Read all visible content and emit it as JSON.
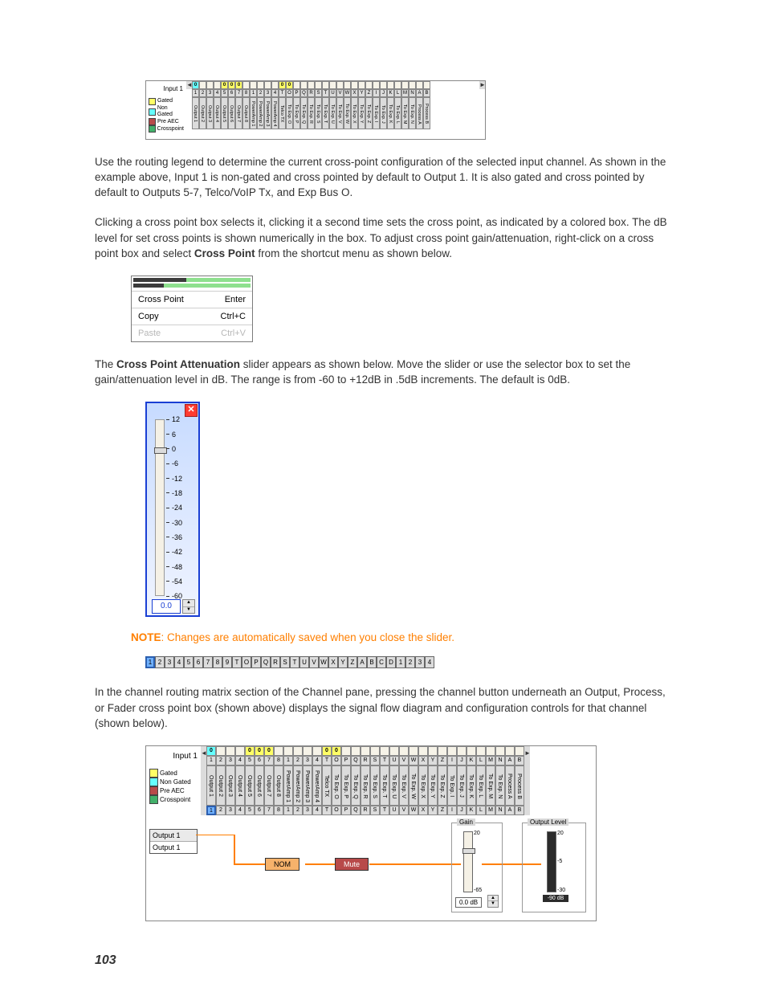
{
  "colors": {
    "gated": "#ffff66",
    "nonGated": "#66ffff",
    "preAEC": "#b84a4a",
    "crosspoint": "#42b06a",
    "note": "#ff7f00",
    "sliderBorder": "#1a3fd4",
    "wire": "#ff7f00"
  },
  "para1": "Use the routing legend to determine the current cross-point configuration of the selected input channel. As shown in the example above, Input 1 is non-gated and cross pointed by default to Output 1. It is also gated and cross pointed by default to Outputs 5-7, Telco/VoIP Tx, and Exp Bus O.",
  "para2_a": "Clicking a cross point box selects it, clicking it a second time sets the cross point, as indicated by a colored box. The dB level for set cross points is shown numerically in the box. To adjust cross point gain/attenuation, right-click on a cross point box and select ",
  "para2_b": "Cross Point",
  "para2_c": " from the shortcut menu as shown below.",
  "para3_a": "The ",
  "para3_b": "Cross Point Attenuation",
  "para3_c": " slider appears as shown below. Move the slider or use the selector box to set the gain/attenuation level in dB. The range is from -60 to +12dB in .5dB increments. The default is 0dB.",
  "note_label": "NOTE",
  "note_text": ": Changes are automatically saved when you close the slider.",
  "para4": "In the channel routing matrix section of the Channel pane, pressing the channel button underneath an Output, Process, or Fader cross point box (shown above) displays the signal flow diagram and configuration controls for that channel (shown below).",
  "pageNumber": "103",
  "matrix": {
    "inputLabel": "Input 1",
    "legend": [
      {
        "label": "Gated",
        "color": "#ffff66"
      },
      {
        "label": "Non Gated",
        "color": "#66ffff"
      },
      {
        "label": "Pre AEC",
        "color": "#b84a4a"
      },
      {
        "label": "Crosspoint",
        "color": "#42b06a"
      }
    ],
    "headers": [
      "1",
      "2",
      "3",
      "4",
      "5",
      "6",
      "7",
      "8",
      "1",
      "2",
      "3",
      "4",
      "T",
      "O",
      "P",
      "Q",
      "R",
      "S",
      "T",
      "U",
      "V",
      "W",
      "X",
      "Y",
      "Z",
      "I",
      "J",
      "K",
      "L",
      "M",
      "N",
      "A",
      "B"
    ],
    "buttons": [
      "1",
      "2",
      "3",
      "4",
      "5",
      "6",
      "7",
      "8",
      "1",
      "2",
      "3",
      "4",
      "T",
      "O",
      "P",
      "Q",
      "R",
      "S",
      "T",
      "U",
      "V",
      "W",
      "X",
      "Y",
      "Z",
      "I",
      "J",
      "K",
      "L",
      "M",
      "N",
      "A",
      "B"
    ],
    "cells": [
      {
        "state": "nongated",
        "val": "0"
      },
      {
        "state": ""
      },
      {
        "state": ""
      },
      {
        "state": ""
      },
      {
        "state": "gated",
        "val": "0"
      },
      {
        "state": "gated",
        "val": "0"
      },
      {
        "state": "gated",
        "val": "0"
      },
      {
        "state": ""
      },
      {
        "state": ""
      },
      {
        "state": ""
      },
      {
        "state": ""
      },
      {
        "state": ""
      },
      {
        "state": "gated",
        "val": "0"
      },
      {
        "state": "gated",
        "val": "0"
      },
      {
        "state": ""
      },
      {
        "state": ""
      },
      {
        "state": ""
      },
      {
        "state": ""
      },
      {
        "state": ""
      },
      {
        "state": ""
      },
      {
        "state": ""
      },
      {
        "state": ""
      },
      {
        "state": ""
      },
      {
        "state": ""
      },
      {
        "state": ""
      },
      {
        "state": ""
      },
      {
        "state": ""
      },
      {
        "state": ""
      },
      {
        "state": ""
      },
      {
        "state": ""
      },
      {
        "state": ""
      },
      {
        "state": ""
      },
      {
        "state": ""
      }
    ],
    "colLabels": [
      "Output 1",
      "Output 2",
      "Output 3",
      "Output 4",
      "Output 5",
      "Output 6",
      "Output 7",
      "Output 8",
      "PowerAmp 1",
      "PowerAmp 2",
      "PowerAmp 3",
      "PowerAmp 4",
      "Telco TX",
      "To Exp. O",
      "To Exp. P",
      "To Exp. Q",
      "To Exp. R",
      "To Exp. S",
      "To Exp. T",
      "To Exp. U",
      "To Exp. V",
      "To Exp. W",
      "To Exp. X",
      "To Exp. Y",
      "To Exp. Z",
      "To Exp. I",
      "To Exp. J",
      "To Exp. K",
      "To Exp. L",
      "To Exp. M",
      "To Exp. N",
      "Process A",
      "Process B"
    ]
  },
  "ctxMenu": {
    "rows": [
      {
        "label": "Cross Point",
        "accel": "Enter",
        "disabled": false
      },
      {
        "label": "Copy",
        "accel": "Ctrl+C",
        "disabled": false
      },
      {
        "label": "Paste",
        "accel": "Ctrl+V",
        "disabled": true
      }
    ]
  },
  "vslider": {
    "ticks": [
      12,
      6,
      0,
      -6,
      -12,
      -18,
      -24,
      -30,
      -36,
      -42,
      -48,
      -54,
      -60
    ],
    "min": -60,
    "max": 12,
    "value": 0,
    "display": "0.0"
  },
  "btnStrip": [
    "1",
    "2",
    "3",
    "4",
    "5",
    "6",
    "7",
    "8",
    "9",
    "T",
    "O",
    "P",
    "Q",
    "R",
    "S",
    "T",
    "U",
    "V",
    "W",
    "X",
    "Y",
    "Z",
    "A",
    "B",
    "C",
    "D",
    "1",
    "2",
    "3",
    "4"
  ],
  "btnStripSelected": 0,
  "flow": {
    "output_caption": "Output 1",
    "output_name": "Output 1",
    "nom_label": "NOM",
    "mute_label": "Mute",
    "gain_title": "Gain",
    "gain_ticks": [
      "20",
      "-65"
    ],
    "gain_value": "0.0 dB",
    "level_title": "Output Level",
    "level_ticks": [
      "20",
      "-5",
      "-30"
    ],
    "level_value": "-90 dB",
    "nom_color": "#f6b26b",
    "mute_color": "#b84a4a",
    "mute_text_color": "#ffffff"
  }
}
